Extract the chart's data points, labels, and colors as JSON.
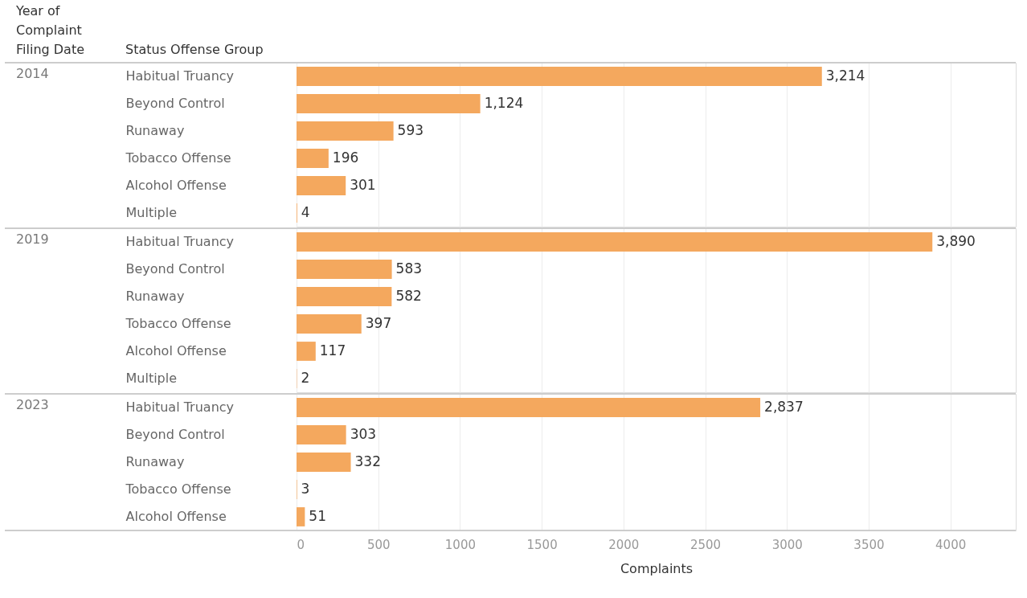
{
  "chart_data": [
    {
      "type": "bar",
      "orientation": "horizontal",
      "title": "2014",
      "annotations": [
        "Year of Complaint Filing Date"
      ],
      "ylabel": "Status Offense Group",
      "categories": [
        "Habitual Truancy",
        "Beyond Control",
        "Runaway",
        "Tobacco Offense",
        "Alcohol Offense",
        "Multiple"
      ],
      "values": [
        3214,
        1124,
        593,
        196,
        301,
        4
      ],
      "value_labels": [
        "3,214",
        "1,124",
        "593",
        "196",
        "301",
        "4"
      ],
      "color": "#f4a85e",
      "xlim": [
        0,
        4400
      ],
      "xticks": [
        0,
        500,
        1000,
        1500,
        2000,
        2500,
        3000,
        3500,
        4000
      ],
      "grid": "x",
      "tick_labels": "y"
    },
    {
      "type": "bar",
      "orientation": "horizontal",
      "title": "2019",
      "categories": [
        "Habitual Truancy",
        "Beyond Control",
        "Runaway",
        "Tobacco Offense",
        "Alcohol Offense",
        "Multiple"
      ],
      "values": [
        3890,
        583,
        582,
        397,
        117,
        2
      ],
      "value_labels": [
        "3,890",
        "583",
        "582",
        "397",
        "117",
        "2"
      ],
      "color": "#f4a85e",
      "xlim": [
        0,
        4400
      ],
      "xticks": [
        0,
        500,
        1000,
        1500,
        2000,
        2500,
        3000,
        3500,
        4000
      ],
      "grid": "x",
      "tick_labels": "y"
    },
    {
      "type": "bar",
      "orientation": "horizontal",
      "title": "2023",
      "xlabel": "Complaints",
      "categories": [
        "Habitual Truancy",
        "Beyond Control",
        "Runaway",
        "Tobacco Offense",
        "Alcohol Offense"
      ],
      "values": [
        2837,
        303,
        332,
        3,
        51
      ],
      "value_labels": [
        "2,837",
        "303",
        "332",
        "3",
        "51"
      ],
      "color": "#f4a85e",
      "xlim": [
        0,
        4400
      ],
      "xticks": [
        0,
        500,
        1000,
        1500,
        2000,
        2500,
        3000,
        3500,
        4000
      ],
      "grid": "x"
    }
  ]
}
